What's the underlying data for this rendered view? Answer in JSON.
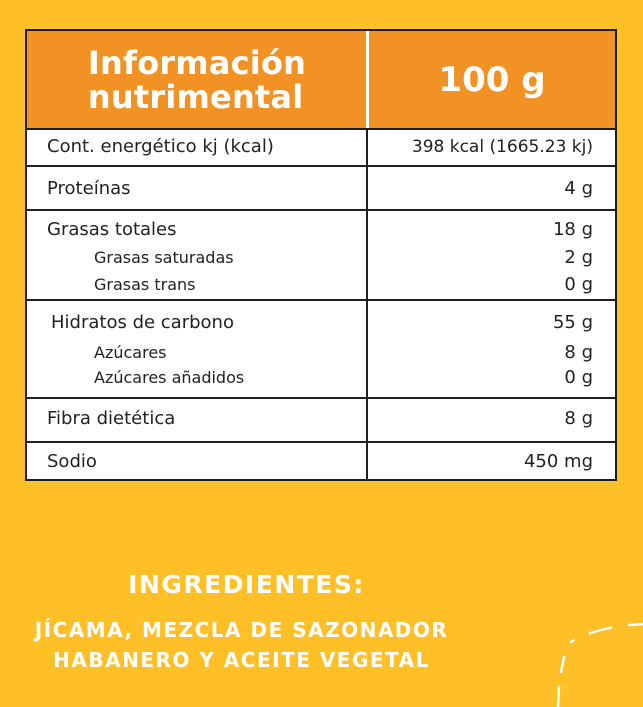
{
  "header": {
    "title_line1": "Información",
    "title_line2": "nutrimental",
    "portion": "100 g"
  },
  "rows": [
    {
      "label": "Cont. energético kj (kcal)",
      "value": "398 kcal (1665.23 kj)"
    },
    {
      "label": "Proteínas",
      "value": "4 g"
    },
    {
      "label": "Grasas totales",
      "value": "18 g",
      "subs": [
        {
          "label": "Grasas saturadas",
          "value": "2 g"
        },
        {
          "label": "Grasas trans",
          "value": "0 g"
        }
      ]
    },
    {
      "label": "Hidratos de carbono",
      "value": "55 g",
      "subs": [
        {
          "label": "Azúcares",
          "value": "8 g"
        },
        {
          "label": "Azúcares añadidos",
          "value": "0 g"
        }
      ]
    },
    {
      "label": "Fibra dietética",
      "value": "8 g"
    },
    {
      "label": "Sodio",
      "value": "450 mg"
    }
  ],
  "ingredients": {
    "title": "INGREDIENTES:",
    "line1": "JÍCAMA, MEZCLA DE SAZONADOR",
    "line2": "HABANERO Y ACEITE VEGETAL"
  },
  "colors": {
    "background": "#FEBF27",
    "header": "#F39224",
    "text": "#222222",
    "border": "#1E1E1E"
  }
}
